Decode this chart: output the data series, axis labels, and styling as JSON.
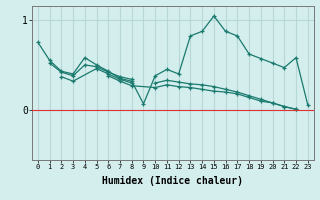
{
  "xlabel": "Humidex (Indice chaleur)",
  "bg_color": "#d4eeee",
  "grid_color": "#b8d8d8",
  "line_color": "#1a7a6e",
  "x_min": -0.5,
  "x_max": 23.5,
  "y_min": -0.55,
  "y_max": 1.15,
  "yticks": [
    0,
    1
  ],
  "xticks": [
    0,
    1,
    2,
    3,
    4,
    5,
    6,
    7,
    8,
    9,
    10,
    11,
    12,
    13,
    14,
    15,
    16,
    17,
    18,
    19,
    20,
    21,
    22,
    23
  ],
  "lines": [
    [
      0.75,
      0.55,
      0.43,
      0.4,
      0.58,
      0.5,
      0.43,
      0.35,
      0.32,
      0.07,
      0.38,
      0.45,
      0.4,
      0.82,
      0.87,
      1.04,
      0.87,
      0.82,
      0.62,
      0.57,
      0.52,
      0.47,
      0.58,
      0.06
    ],
    [
      null,
      0.52,
      0.42,
      0.38,
      0.5,
      0.48,
      0.42,
      0.37,
      0.34,
      null,
      null,
      null,
      null,
      null,
      null,
      null,
      null,
      null,
      null,
      null,
      null,
      null,
      null,
      null
    ],
    [
      null,
      null,
      0.37,
      0.32,
      null,
      0.46,
      0.4,
      0.34,
      0.3,
      null,
      null,
      null,
      null,
      null,
      null,
      null,
      null,
      null,
      null,
      null,
      null,
      null,
      null,
      null
    ],
    [
      null,
      null,
      null,
      null,
      null,
      null,
      0.38,
      0.32,
      0.27,
      null,
      0.25,
      0.28,
      0.26,
      0.25,
      0.23,
      0.21,
      0.2,
      0.18,
      0.14,
      0.1,
      0.08,
      0.04,
      0.01,
      null
    ],
    [
      null,
      null,
      null,
      null,
      null,
      null,
      null,
      null,
      null,
      null,
      0.3,
      0.33,
      0.31,
      0.29,
      0.28,
      0.26,
      0.23,
      0.2,
      0.16,
      0.12,
      0.08,
      0.04,
      0.01,
      null
    ]
  ]
}
